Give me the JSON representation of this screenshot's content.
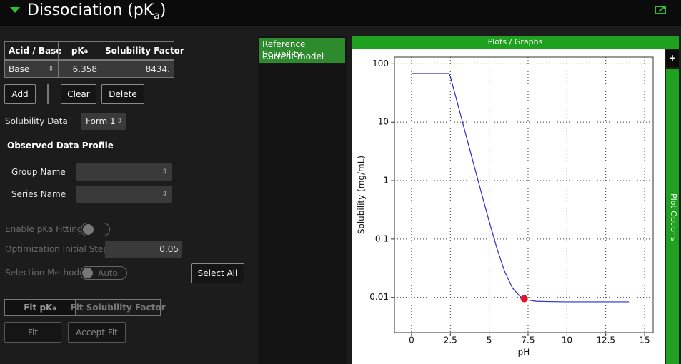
{
  "header": {
    "title": [
      "Dissociation (pK",
      "a",
      ")"
    ]
  },
  "table": {
    "headers": [
      [
        "Acid / Base"
      ],
      [
        "pK",
        "a"
      ],
      [
        "Solubility Factor"
      ]
    ],
    "rows": [
      [
        "Base",
        "6.358",
        "8434."
      ]
    ]
  },
  "buttons": {
    "add": "Add",
    "clear": "Clear",
    "delete": "Delete",
    "select_all": "Select All",
    "fit": "Fit",
    "accept_fit": "Accept Fit"
  },
  "form": {
    "solubility_data": "Solubility Data",
    "form_value": "Form 1",
    "observed_profile": "Observed Data Profile",
    "group_name": "Group Name",
    "series_name": "Series Name",
    "enable_fitting": "Enable pKa Fitting",
    "opt_step_label": "Optimization Initial Step",
    "opt_step_value": "0.05",
    "selection_method": "Selection Method",
    "selection_value": "Auto"
  },
  "fit_tabs": [
    [
      "Fit pK",
      "a"
    ],
    [
      "Fit Solubility Factor"
    ]
  ],
  "model_list": [
    "Reference Solubility",
    "Current model"
  ],
  "plot_panel": {
    "title": "Plots / Graphs",
    "options": "Plot Options",
    "plus": "+"
  },
  "chart_data": {
    "type": "line",
    "x_label": "pH",
    "y_label": "Solubility (mg/mL)",
    "log_y": true,
    "grid": true,
    "x": [
      0,
      1,
      2,
      2.4,
      2.5,
      3,
      3.5,
      4,
      4.5,
      5,
      5.5,
      6,
      6.5,
      7,
      7.5,
      8,
      9,
      10,
      11,
      12,
      13,
      14
    ],
    "values": [
      68,
      68,
      68,
      68,
      60.6,
      19.2,
      6.06,
      1.92,
      0.614,
      0.1996,
      0.069,
      0.0276,
      0.01446,
      0.01032,
      0.00901,
      0.00859,
      0.00846,
      0.0084,
      0.0084,
      0.0084,
      0.0084,
      0.0084
    ],
    "color": "#2a2ad0",
    "points": {
      "x": [
        7.25
      ],
      "values": [
        0.0095
      ],
      "color": "#e0142a"
    },
    "xlim": [
      -1.1,
      15.55
    ],
    "ylim": [
      0.0025,
      130
    ],
    "xticks": [
      0,
      2.5,
      5,
      7.5,
      10,
      12.5,
      15
    ],
    "yticks": [
      0.01,
      0.1,
      1,
      10,
      100
    ]
  }
}
